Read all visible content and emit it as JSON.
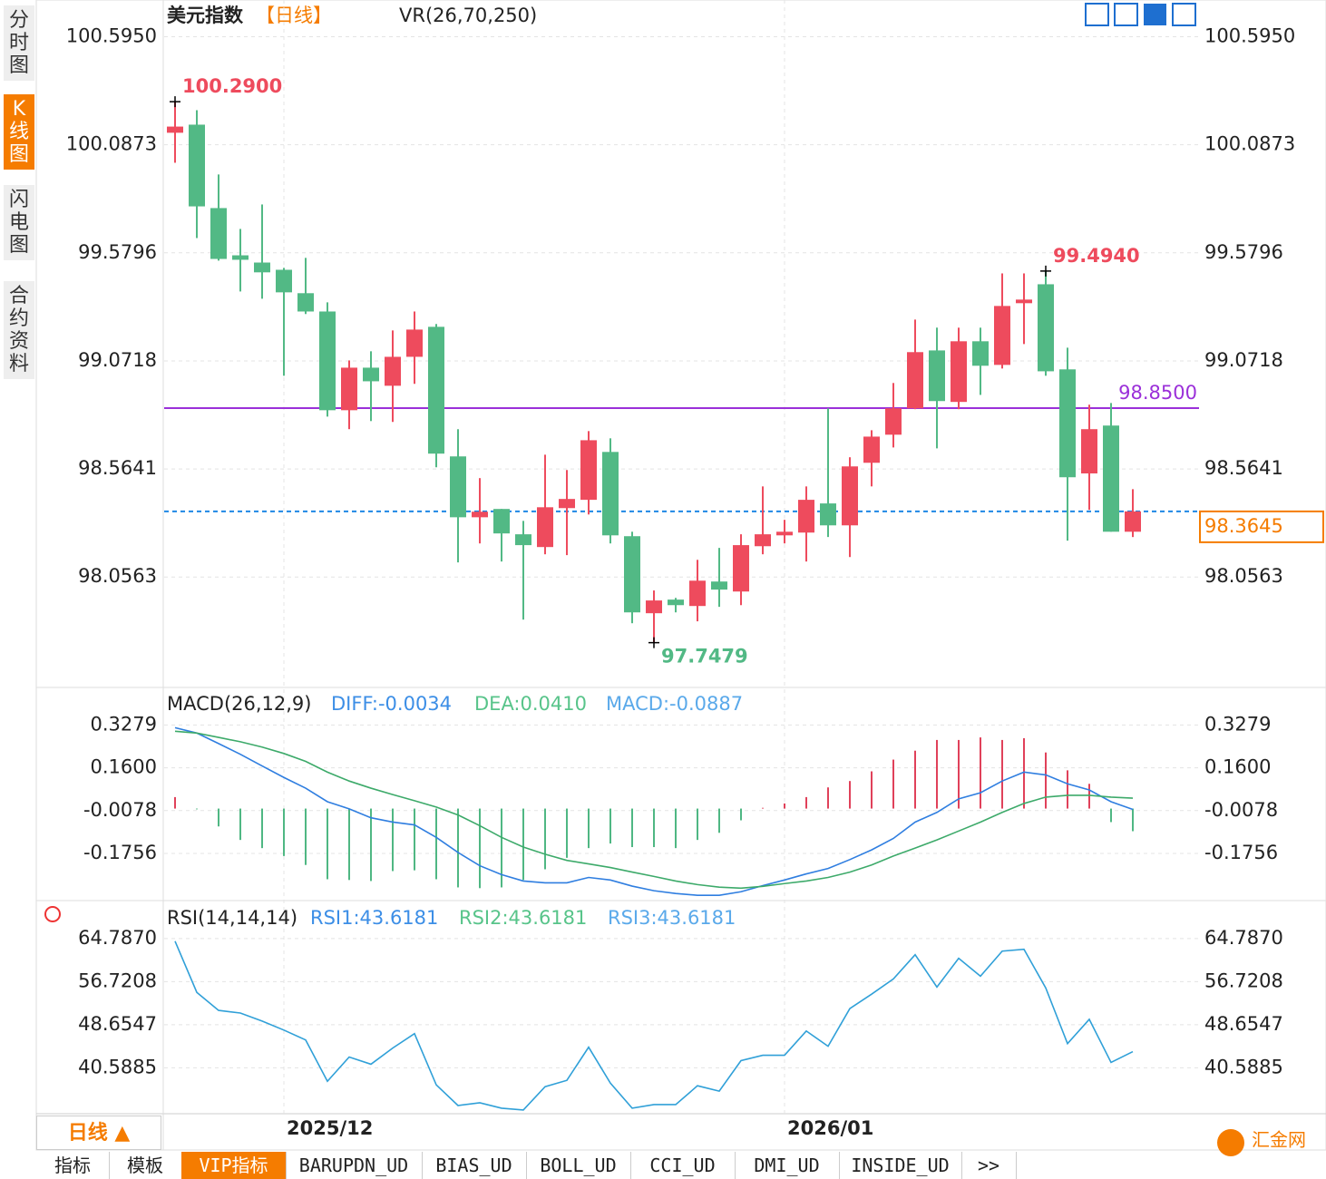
{
  "ui": {
    "sidebar": [
      "分时图",
      "K线图",
      "闪电图",
      "合约资料"
    ],
    "period_box": "日线 ▲",
    "tabs": [
      "指标",
      "模板",
      "VIP指标",
      "BARUPDN_UD",
      "BIAS_UD",
      "BOLL_UD",
      "CCI_UD",
      "DMI_UD",
      "INSIDE_UD",
      ">>"
    ],
    "logo": "汇金网"
  },
  "chart_data": [
    {
      "type": "candlestick",
      "title": "美元指数",
      "period": "【日线】",
      "indicator": "VR(26,70,250)",
      "up_color": "#ee4b5d",
      "down_color": "#52b985",
      "categories": [
        null,
        null,
        null,
        null,
        null,
        "2025/12",
        null,
        null,
        null,
        null,
        null,
        null,
        null,
        null,
        null,
        null,
        null,
        null,
        null,
        null,
        null,
        null,
        null,
        null,
        null,
        null,
        null,
        null,
        "2026/01",
        null,
        null,
        null,
        null,
        null,
        null,
        null,
        null,
        null,
        null,
        null,
        null,
        null,
        null,
        null,
        null
      ],
      "open": [
        100.144,
        100.182,
        99.79,
        99.568,
        99.534,
        99.5,
        99.39,
        99.304,
        98.84,
        99.04,
        98.955,
        99.091,
        99.232,
        98.623,
        98.337,
        98.376,
        98.257,
        98.197,
        98.38,
        98.419,
        98.644,
        98.248,
        97.886,
        97.95,
        97.92,
        98.035,
        97.988,
        98.201,
        98.252,
        98.265,
        98.402,
        98.299,
        98.593,
        98.725,
        98.849,
        99.121,
        98.879,
        99.164,
        99.053,
        99.343,
        99.432,
        99.032,
        98.543,
        98.768,
        98.269
      ],
      "high": [
        100.29,
        100.25,
        99.948,
        99.692,
        99.807,
        99.509,
        99.556,
        99.347,
        99.074,
        99.117,
        99.215,
        99.304,
        99.245,
        98.751,
        98.521,
        98.376,
        98.32,
        98.631,
        98.559,
        98.742,
        98.708,
        98.269,
        97.993,
        97.958,
        98.137,
        98.193,
        98.257,
        98.482,
        98.325,
        98.482,
        98.849,
        98.619,
        98.746,
        98.968,
        99.266,
        99.228,
        99.228,
        99.228,
        99.483,
        99.483,
        99.494,
        99.134,
        98.866,
        98.874,
        98.469
      ],
      "low": [
        100.003,
        99.649,
        99.543,
        99.398,
        99.364,
        99.002,
        99.292,
        98.81,
        98.751,
        98.789,
        98.785,
        98.964,
        98.572,
        98.125,
        98.214,
        98.129,
        97.856,
        98.163,
        98.159,
        98.35,
        98.214,
        97.839,
        97.7479,
        97.89,
        97.848,
        97.916,
        97.924,
        98.163,
        98.214,
        98.129,
        98.244,
        98.15,
        98.482,
        98.665,
        98.845,
        98.661,
        98.845,
        98.912,
        99.036,
        99.151,
        99.002,
        98.227,
        98.372,
        98.269,
        98.244
      ],
      "close": [
        100.173,
        99.798,
        99.551,
        99.547,
        99.488,
        99.394,
        99.304,
        98.84,
        99.04,
        98.976,
        99.091,
        99.219,
        98.636,
        98.337,
        98.363,
        98.261,
        98.206,
        98.384,
        98.423,
        98.699,
        98.252,
        97.89,
        97.946,
        97.924,
        98.039,
        97.997,
        98.206,
        98.257,
        98.269,
        98.419,
        98.299,
        98.576,
        98.716,
        98.849,
        99.113,
        98.883,
        99.164,
        99.049,
        99.33,
        99.36,
        99.023,
        98.525,
        98.751,
        98.269,
        98.3645
      ],
      "ylim": [
        97.55,
        100.64
      ],
      "yticks": [
        {
          "value": 100.595,
          "label": "100.5950"
        },
        100.0873,
        99.5796,
        99.0718,
        98.5641,
        98.0563
      ],
      "extremes": [
        {
          "value": 100.29,
          "label": "100.2900",
          "color": "#ee4b5d"
        },
        {
          "value": 99.494,
          "label": "99.4940",
          "color": "#ee4b5d"
        },
        {
          "value": 97.7479,
          "label": "97.7479",
          "color": "#52b985"
        }
      ],
      "hline": {
        "value": 98.85,
        "label": "98.8500",
        "color": "#9b30d9"
      },
      "last": {
        "value": 98.3645,
        "label": "98.3645",
        "color": "#1e88e5",
        "box_color": "#f57c00"
      }
    },
    {
      "type": "macd",
      "title": "MACD(26,12,9)",
      "legend": [
        "DIFF:-0.0034",
        "DEA:0.0410",
        "MACD:-0.0887"
      ],
      "ylim": [
        -0.35,
        0.45
      ],
      "yticks": [
        0.3279,
        {
          "value": 0.16,
          "label": "0.1600"
        },
        -0.0078,
        -0.1756
      ],
      "series": [
        {
          "name": "DIFF",
          "color": "#2f7ee0",
          "values": [
            0.317,
            0.296,
            0.255,
            0.213,
            0.167,
            0.122,
            0.08,
            0.027,
            -0.001,
            -0.036,
            -0.053,
            -0.064,
            -0.113,
            -0.172,
            -0.224,
            -0.259,
            -0.284,
            -0.291,
            -0.291,
            -0.27,
            -0.28,
            -0.304,
            -0.322,
            -0.333,
            -0.34,
            -0.34,
            -0.326,
            -0.302,
            -0.28,
            -0.256,
            -0.235,
            -0.2,
            -0.162,
            -0.117,
            -0.053,
            -0.015,
            0.038,
            0.062,
            0.108,
            0.143,
            0.132,
            0.097,
            0.073,
            0.027,
            -0.0034
          ]
        },
        {
          "name": "DEA",
          "color": "#3daa6a",
          "values": [
            0.303,
            0.296,
            0.279,
            0.262,
            0.241,
            0.216,
            0.185,
            0.143,
            0.108,
            0.08,
            0.055,
            0.031,
            0.006,
            -0.025,
            -0.067,
            -0.113,
            -0.151,
            -0.179,
            -0.203,
            -0.217,
            -0.231,
            -0.249,
            -0.266,
            -0.284,
            -0.298,
            -0.308,
            -0.312,
            -0.305,
            -0.294,
            -0.284,
            -0.27,
            -0.249,
            -0.221,
            -0.186,
            -0.155,
            -0.123,
            -0.088,
            -0.053,
            -0.015,
            0.02,
            0.045,
            0.052,
            0.052,
            0.045,
            0.041
          ]
        },
        {
          "name": "MACD",
          "up_color": "#e0415a",
          "down_color": "#4fb783",
          "values": [
            0.045,
            -0.003,
            -0.07,
            -0.123,
            -0.155,
            -0.186,
            -0.221,
            -0.277,
            -0.28,
            -0.284,
            -0.245,
            -0.242,
            -0.277,
            -0.309,
            -0.312,
            -0.309,
            -0.28,
            -0.238,
            -0.193,
            -0.155,
            -0.137,
            -0.151,
            -0.151,
            -0.155,
            -0.123,
            -0.095,
            -0.046,
            0.003,
            0.02,
            0.045,
            0.083,
            0.108,
            0.146,
            0.192,
            0.227,
            0.269,
            0.269,
            0.279,
            0.269,
            0.276,
            0.22,
            0.15,
            0.097,
            -0.053,
            -0.0887
          ]
        }
      ],
      "legend_colors": [
        "#3c8ee6",
        "#58c48a",
        "#5aa9ea"
      ]
    },
    {
      "type": "line",
      "title": "RSI(14,14,14)",
      "legend": [
        "RSI1:43.6181",
        "RSI2:43.6181",
        "RSI3:43.6181"
      ],
      "legend_colors": [
        "#3c8ee6",
        "#58c48a",
        "#5aa9ea"
      ],
      "ylim": [
        32.0,
        70.7
      ],
      "yticks": [
        {
          "value": 64.787,
          "label": "64.7870"
        },
        56.7208,
        48.6547,
        40.5885
      ],
      "series": [
        {
          "name": "RSI1",
          "color": "#30a0d8",
          "values": [
            64.28,
            54.71,
            51.34,
            50.84,
            49.33,
            47.65,
            45.8,
            38.07,
            42.61,
            41.26,
            44.29,
            46.98,
            37.4,
            33.53,
            34.04,
            33.03,
            32.69,
            37.06,
            38.24,
            44.45,
            37.73,
            33.03,
            33.7,
            33.7,
            37.23,
            36.22,
            41.93,
            42.94,
            42.94,
            47.48,
            44.62,
            51.68,
            54.37,
            57.23,
            61.76,
            55.71,
            61.09,
            57.73,
            62.43,
            62.77,
            55.54,
            45.12,
            49.66,
            41.6,
            43.6181
          ]
        }
      ]
    }
  ]
}
